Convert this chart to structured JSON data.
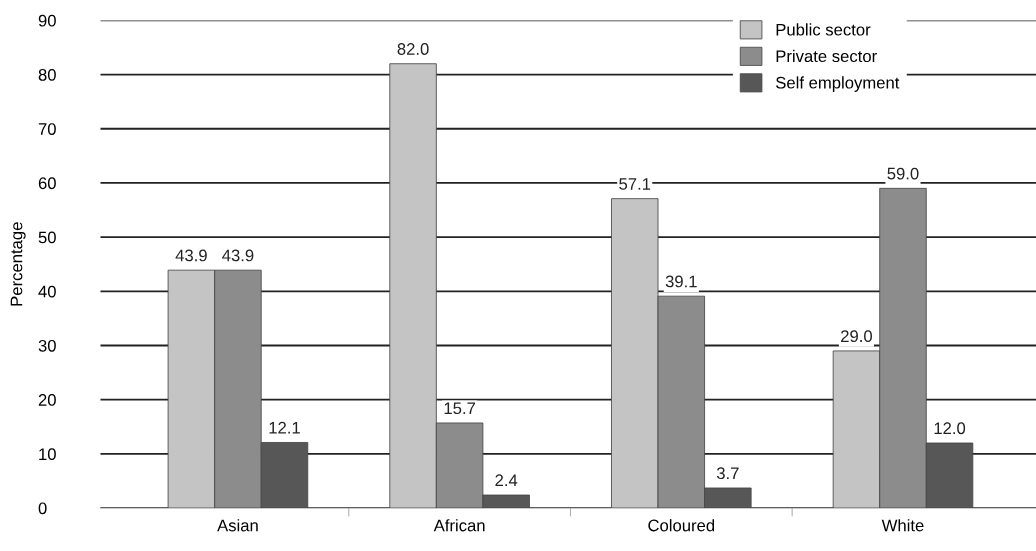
{
  "chart_data": {
    "type": "bar",
    "ylabel": "Percentage",
    "categories": [
      "Asian",
      "African",
      "Coloured",
      "White"
    ],
    "series": [
      {
        "name": "Public sector",
        "color": "#c4c4c4",
        "values": [
          43.9,
          82.0,
          57.1,
          29.0
        ],
        "value_labels": [
          "43.9",
          "82.0",
          "57.1",
          "29.0"
        ]
      },
      {
        "name": "Private sector",
        "color": "#8c8c8c",
        "values": [
          43.9,
          15.7,
          39.1,
          59.0
        ],
        "value_labels": [
          "43.9",
          "15.7",
          "39.1",
          "59.0"
        ]
      },
      {
        "name": "Self employment",
        "color": "#575757",
        "values": [
          12.1,
          2.4,
          3.7,
          12.0
        ],
        "value_labels": [
          "12.1",
          "2.4",
          "3.7",
          "12.0"
        ]
      }
    ],
    "ylim": [
      0,
      90
    ],
    "yticks": [
      0,
      10,
      20,
      30,
      40,
      50,
      60,
      70,
      80,
      90
    ],
    "grid": "y",
    "legend": "top right"
  }
}
